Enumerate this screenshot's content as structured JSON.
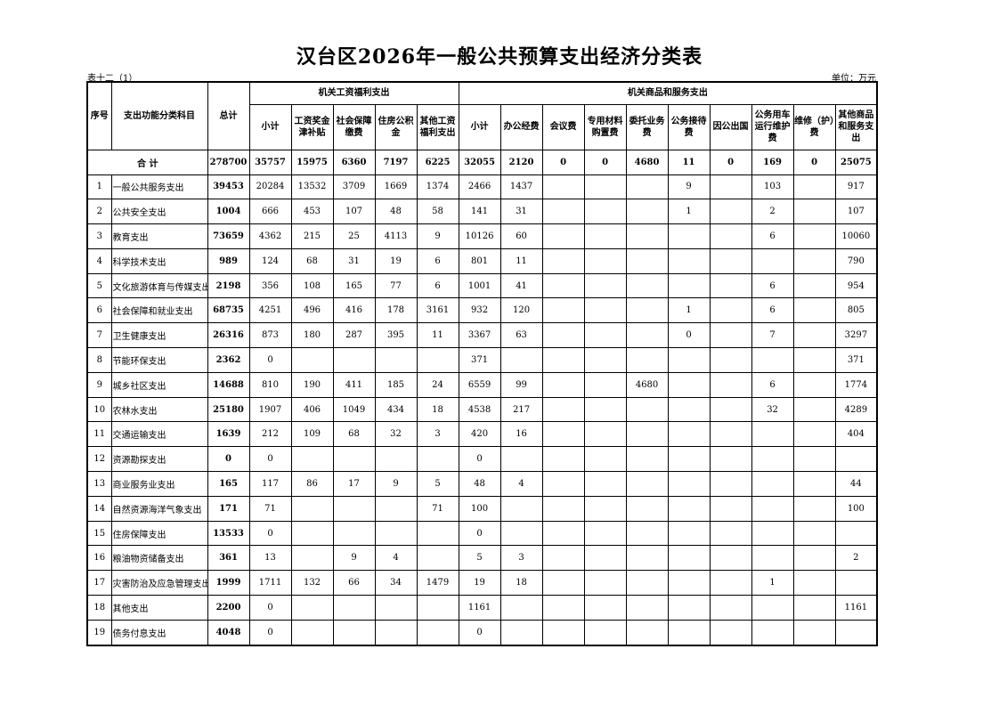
{
  "title": "汉台区2026年一般公共预算支出经济分类表",
  "table_no": "表十二（1）",
  "unit": "单位：万元",
  "headers": {
    "seq": "序号",
    "subject": "支出功能分类科目",
    "total": "总计",
    "group_salary": "机关工资福利支出",
    "group_goods": "机关商品和服务支出",
    "columns": [
      "小计",
      "工资奖金津补贴",
      "社会保障缴费",
      "住房公积金",
      "其他工资福利支出",
      "小计",
      "办公经费",
      "会议费",
      "专用材料购置费",
      "委托业务费",
      "公务接待费",
      "因公出国",
      "公务用车运行维护费",
      "维修（护）费",
      "其他商品和服务支出"
    ]
  },
  "total_row": {
    "label": "合 计",
    "values": [
      "278700",
      "35757",
      "15975",
      "6360",
      "7197",
      "6225",
      "32055",
      "2120",
      "0",
      "0",
      "4680",
      "11",
      "0",
      "169",
      "0",
      "25075"
    ]
  },
  "rows": [
    {
      "seq": "1",
      "name": "一般公共服务支出",
      "values": [
        "39453",
        "20284",
        "13532",
        "3709",
        "1669",
        "1374",
        "2466",
        "1437",
        "",
        "",
        "",
        "9",
        "",
        "103",
        "",
        "917"
      ]
    },
    {
      "seq": "2",
      "name": "公共安全支出",
      "values": [
        "1004",
        "666",
        "453",
        "107",
        "48",
        "58",
        "141",
        "31",
        "",
        "",
        "",
        "1",
        "",
        "2",
        "",
        "107"
      ]
    },
    {
      "seq": "3",
      "name": "教育支出",
      "values": [
        "73659",
        "4362",
        "215",
        "25",
        "4113",
        "9",
        "10126",
        "60",
        "",
        "",
        "",
        "",
        "",
        "6",
        "",
        "10060"
      ]
    },
    {
      "seq": "4",
      "name": "科学技术支出",
      "values": [
        "989",
        "124",
        "68",
        "31",
        "19",
        "6",
        "801",
        "11",
        "",
        "",
        "",
        "",
        "",
        "",
        "",
        "790"
      ]
    },
    {
      "seq": "5",
      "name": "文化旅游体育与传媒支出",
      "values": [
        "2198",
        "356",
        "108",
        "165",
        "77",
        "6",
        "1001",
        "41",
        "",
        "",
        "",
        "",
        "",
        "6",
        "",
        "954"
      ]
    },
    {
      "seq": "6",
      "name": "社会保障和就业支出",
      "values": [
        "68735",
        "4251",
        "496",
        "416",
        "178",
        "3161",
        "932",
        "120",
        "",
        "",
        "",
        "1",
        "",
        "6",
        "",
        "805"
      ]
    },
    {
      "seq": "7",
      "name": "卫生健康支出",
      "values": [
        "26316",
        "873",
        "180",
        "287",
        "395",
        "11",
        "3367",
        "63",
        "",
        "",
        "",
        "0",
        "",
        "7",
        "",
        "3297"
      ]
    },
    {
      "seq": "8",
      "name": "节能环保支出",
      "values": [
        "2362",
        "0",
        "",
        "",
        "",
        "",
        "371",
        "",
        "",
        "",
        "",
        "",
        "",
        "",
        "",
        "371"
      ]
    },
    {
      "seq": "9",
      "name": "城乡社区支出",
      "values": [
        "14688",
        "810",
        "190",
        "411",
        "185",
        "24",
        "6559",
        "99",
        "",
        "",
        "4680",
        "",
        "",
        "6",
        "",
        "1774"
      ]
    },
    {
      "seq": "10",
      "name": "农林水支出",
      "values": [
        "25180",
        "1907",
        "406",
        "1049",
        "434",
        "18",
        "4538",
        "217",
        "",
        "",
        "",
        "",
        "",
        "32",
        "",
        "4289"
      ]
    },
    {
      "seq": "11",
      "name": "交通运输支出",
      "values": [
        "1639",
        "212",
        "109",
        "68",
        "32",
        "3",
        "420",
        "16",
        "",
        "",
        "",
        "",
        "",
        "",
        "",
        "404"
      ]
    },
    {
      "seq": "12",
      "name": "资源勘探支出",
      "values": [
        "0",
        "0",
        "",
        "",
        "",
        "",
        "0",
        "",
        "",
        "",
        "",
        "",
        "",
        "",
        "",
        ""
      ]
    },
    {
      "seq": "13",
      "name": "商业服务业支出",
      "values": [
        "165",
        "117",
        "86",
        "17",
        "9",
        "5",
        "48",
        "4",
        "",
        "",
        "",
        "",
        "",
        "",
        "",
        "44"
      ]
    },
    {
      "seq": "14",
      "name": "自然资源海洋气象支出",
      "values": [
        "171",
        "71",
        "",
        "",
        "",
        "71",
        "100",
        "",
        "",
        "",
        "",
        "",
        "",
        "",
        "",
        "100"
      ]
    },
    {
      "seq": "15",
      "name": "住房保障支出",
      "values": [
        "13533",
        "0",
        "",
        "",
        "",
        "",
        "0",
        "",
        "",
        "",
        "",
        "",
        "",
        "",
        "",
        ""
      ]
    },
    {
      "seq": "16",
      "name": "粮油物资储备支出",
      "values": [
        "361",
        "13",
        "",
        "9",
        "4",
        "",
        "5",
        "3",
        "",
        "",
        "",
        "",
        "",
        "",
        "",
        "2"
      ]
    },
    {
      "seq": "17",
      "name": "灾害防治及应急管理支出",
      "values": [
        "1999",
        "1711",
        "132",
        "66",
        "34",
        "1479",
        "19",
        "18",
        "",
        "",
        "",
        "",
        "",
        "1",
        "",
        ""
      ]
    },
    {
      "seq": "18",
      "name": "其他支出",
      "values": [
        "2200",
        "0",
        "",
        "",
        "",
        "",
        "1161",
        "",
        "",
        "",
        "",
        "",
        "",
        "",
        "",
        "1161"
      ]
    },
    {
      "seq": "19",
      "name": "债务付息支出",
      "values": [
        "4048",
        "0",
        "",
        "",
        "",
        "",
        "0",
        "",
        "",
        "",
        "",
        "",
        "",
        "",
        "",
        ""
      ]
    }
  ]
}
